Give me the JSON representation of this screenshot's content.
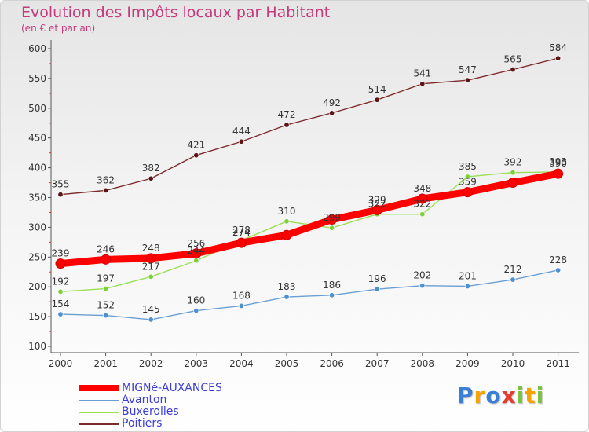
{
  "chart_data": {
    "type": "line",
    "title": "Evolution des Impôts locaux par Habitant",
    "subtitle": "(en € et par an)",
    "categories": [
      "2000",
      "2001",
      "2002",
      "2003",
      "2004",
      "2005",
      "2006",
      "2007",
      "2008",
      "2009",
      "2010",
      "2011"
    ],
    "ylim": [
      100,
      600
    ],
    "yticks": [
      100,
      150,
      200,
      250,
      300,
      350,
      400,
      450,
      500,
      550,
      600
    ],
    "grid": false,
    "legend_position": "bottom-left",
    "series": [
      {
        "name": "MIGNé-AUXANCES",
        "color": "#ff0000",
        "values": [
          239,
          246,
          248,
          256,
          274,
          287,
          313,
          329,
          348,
          359,
          375,
          390
        ],
        "labels": [
          "239",
          "246",
          "248",
          "256",
          "274",
          "",
          "",
          "329",
          "348",
          "359",
          "",
          "390"
        ]
      },
      {
        "name": "Avanton",
        "color": "#6a9fd4",
        "values": [
          154,
          152,
          145,
          160,
          168,
          183,
          186,
          196,
          202,
          201,
          212,
          228
        ],
        "labels": [
          "154",
          "152",
          "145",
          "160",
          "168",
          "183",
          "186",
          "196",
          "202",
          "201",
          "212",
          "228"
        ]
      },
      {
        "name": "Buxerolles",
        "color": "#99e055",
        "values": [
          192,
          197,
          217,
          244,
          278,
          310,
          299,
          322,
          322,
          385,
          392,
          393
        ],
        "labels": [
          "192",
          "197",
          "217",
          "244",
          "278",
          "310",
          "299",
          "322",
          "322",
          "385",
          "392",
          "393"
        ]
      },
      {
        "name": "Poitiers",
        "color": "#7d2a2a",
        "values": [
          355,
          362,
          382,
          421,
          444,
          472,
          492,
          514,
          541,
          547,
          565,
          584
        ],
        "labels": [
          "355",
          "362",
          "382",
          "421",
          "444",
          "472",
          "492",
          "514",
          "541",
          "547",
          "565",
          "584"
        ]
      }
    ]
  },
  "logo": {
    "letters": [
      "P",
      "r",
      "o",
      "x",
      "i",
      "t",
      "i"
    ]
  }
}
